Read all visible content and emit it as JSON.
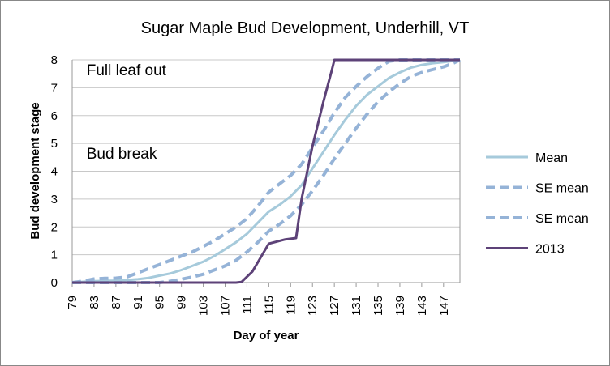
{
  "chart_data": {
    "type": "line",
    "title": "Sugar Maple Bud Development, Underhill, VT",
    "xlabel": "Day of year",
    "ylabel": "Bud development stage",
    "xlim": [
      79,
      150
    ],
    "ylim": [
      0,
      8
    ],
    "x_ticks": [
      "79",
      "83",
      "87",
      "91",
      "95",
      "99",
      "103",
      "107",
      "111",
      "115",
      "119",
      "123",
      "127",
      "131",
      "135",
      "139",
      "143",
      "147"
    ],
    "y_ticks": [
      "0",
      "1",
      "2",
      "3",
      "4",
      "5",
      "6",
      "7",
      "8"
    ],
    "grid": "horizontal",
    "legend_position": "right",
    "annotations": [
      {
        "text": "Full leaf out",
        "x": 80,
        "y": 7.45
      },
      {
        "text": "Bud break",
        "x": 80,
        "y": 4.45
      }
    ],
    "series": [
      {
        "name": "Mean",
        "style": "solid",
        "color": "#a6cadb",
        "x": [
          79,
          81,
          83,
          85,
          87,
          89,
          91,
          93,
          95,
          97,
          99,
          101,
          103,
          105,
          107,
          109,
          111,
          113,
          115,
          117,
          119,
          121,
          123,
          125,
          127,
          129,
          131,
          133,
          135,
          137,
          139,
          141,
          143,
          145,
          147,
          149,
          150
        ],
        "y": [
          0,
          0.03,
          0.05,
          0.06,
          0.07,
          0.09,
          0.12,
          0.17,
          0.25,
          0.33,
          0.45,
          0.6,
          0.75,
          0.95,
          1.2,
          1.45,
          1.75,
          2.15,
          2.55,
          2.8,
          3.1,
          3.5,
          4.1,
          4.7,
          5.3,
          5.85,
          6.35,
          6.75,
          7.05,
          7.35,
          7.55,
          7.72,
          7.82,
          7.88,
          7.92,
          7.97,
          8
        ]
      },
      {
        "name": "SE mean",
        "style": "dashed",
        "color": "#95b3d7",
        "x": [
          79,
          81,
          83,
          85,
          87,
          89,
          91,
          93,
          95,
          97,
          99,
          101,
          103,
          105,
          107,
          109,
          111,
          113,
          115,
          117,
          119,
          121,
          123,
          125,
          127,
          129,
          131,
          133,
          135,
          137,
          139,
          141,
          143,
          145,
          147,
          149,
          150
        ],
        "y": [
          0,
          0.05,
          0.13,
          0.15,
          0.16,
          0.2,
          0.35,
          0.5,
          0.65,
          0.8,
          0.95,
          1.1,
          1.3,
          1.5,
          1.75,
          2.0,
          2.3,
          2.75,
          3.25,
          3.55,
          3.85,
          4.25,
          4.85,
          5.45,
          6.1,
          6.65,
          7.05,
          7.4,
          7.7,
          7.95,
          8,
          8,
          8,
          8,
          8,
          8,
          8
        ]
      },
      {
        "name": "SE mean",
        "style": "dashed",
        "color": "#95b3d7",
        "x": [
          79,
          81,
          83,
          85,
          87,
          89,
          91,
          93,
          95,
          97,
          99,
          101,
          103,
          105,
          107,
          109,
          111,
          113,
          115,
          117,
          119,
          121,
          123,
          125,
          127,
          129,
          131,
          133,
          135,
          137,
          139,
          141,
          143,
          145,
          147,
          149,
          150
        ],
        "y": [
          0,
          0,
          0,
          0,
          0,
          0,
          0,
          0,
          0,
          0.05,
          0.12,
          0.2,
          0.3,
          0.45,
          0.6,
          0.8,
          1.1,
          1.45,
          1.85,
          2.1,
          2.4,
          2.8,
          3.3,
          3.85,
          4.45,
          5.0,
          5.55,
          6.05,
          6.5,
          6.85,
          7.15,
          7.4,
          7.55,
          7.65,
          7.75,
          7.9,
          8
        ]
      },
      {
        "name": "2013",
        "style": "solid",
        "color": "#5d4278",
        "x": [
          79,
          109,
          110,
          112,
          115,
          118,
          120,
          121,
          123,
          125,
          126.5,
          127,
          150
        ],
        "y": [
          0,
          0,
          0.02,
          0.4,
          1.4,
          1.55,
          1.6,
          3.0,
          4.9,
          6.5,
          7.6,
          8,
          8
        ]
      }
    ]
  }
}
